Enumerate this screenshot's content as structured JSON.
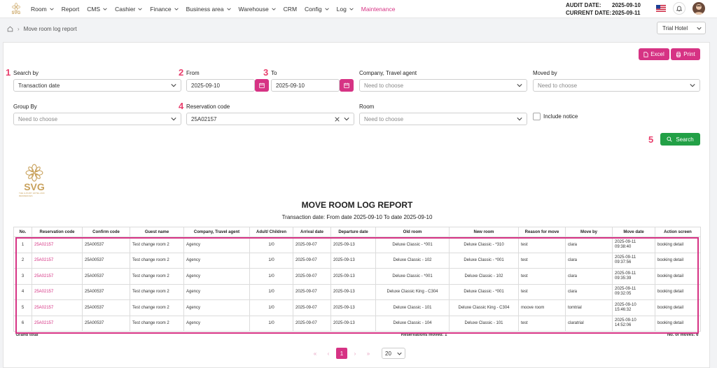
{
  "logo": {
    "text": "SVG"
  },
  "nav": {
    "items": [
      {
        "label": "Room",
        "chevron": true
      },
      {
        "label": "Report",
        "chevron": false
      },
      {
        "label": "CMS",
        "chevron": true
      },
      {
        "label": "Cashier",
        "chevron": true
      },
      {
        "label": "Finance",
        "chevron": true
      },
      {
        "label": "Business area",
        "chevron": true
      },
      {
        "label": "Warehouse",
        "chevron": true
      },
      {
        "label": "CRM",
        "chevron": false
      },
      {
        "label": "Config",
        "chevron": true
      },
      {
        "label": "Log",
        "chevron": true
      },
      {
        "label": "Maintenance",
        "chevron": false
      }
    ],
    "active": "Maintenance",
    "active_color": "#d63384"
  },
  "header": {
    "audit_label": "AUDIT DATE:",
    "audit_value": "2025-09-10",
    "current_label": "CURRENT DATE:",
    "current_value": "2025-09-11",
    "icons": [
      "us-flag-icon",
      "bell-icon",
      "avatar"
    ]
  },
  "breadcrumb": {
    "page": "Move room log report"
  },
  "hotel_select": {
    "value": "Trial Hotel"
  },
  "toolbar": {
    "excel_label": "Excel",
    "print_label": "Print"
  },
  "filters": {
    "search_by": {
      "marker": "1",
      "label": "Search by",
      "value": "Transaction date"
    },
    "from": {
      "marker": "2",
      "label": "From",
      "value": "2025-09-10"
    },
    "to": {
      "marker": "3",
      "label": "To",
      "value": "2025-09-10"
    },
    "company": {
      "label": "Company, Travel agent",
      "placeholder": "Need to choose"
    },
    "moved_by": {
      "label": "Moved by",
      "placeholder": "Need to choose"
    },
    "group_by": {
      "label": "Group By",
      "placeholder": "Need to choose"
    },
    "reservation_code": {
      "marker": "4",
      "label": "Reservation code",
      "value": "25A02157"
    },
    "room": {
      "label": "Room",
      "placeholder": "Need to choose"
    },
    "include_notice": {
      "label": "Include notice",
      "checked": false
    },
    "search": {
      "marker": "5",
      "label": "Search"
    }
  },
  "report": {
    "logo_text": "SVG",
    "logo_tagline": "THE LUXURY HOTEL AND RESIDENCES",
    "title": "MOVE ROOM LOG REPORT",
    "subtitle": "Transaction date:   From date 2025-09-10   To date 2025-09-10",
    "columns": [
      "No.",
      "Reservation code",
      "Confirm code",
      "Guest name",
      "Company, Travel agent",
      "Adult/ Children",
      "Arrival date",
      "Departure date",
      "Old room",
      "New room",
      "Reason for move",
      "Move by",
      "Move date",
      "Action screen"
    ],
    "rows": [
      {
        "no": "1",
        "reservation_code": "25A02157",
        "confirm_code": "25A00537",
        "guest": "Test change room 2",
        "company": "Agency",
        "adult_children": "1/0",
        "arrival": "2025-09-07",
        "departure": "2025-09-13",
        "old_room": "Deluxe Classic - *001",
        "new_room": "Deluxe Classic - *310",
        "reason": "test",
        "move_by": "clara",
        "move_date_1": "2025-09-11",
        "move_date_2": "09:38:40",
        "action": "booking detail"
      },
      {
        "no": "2",
        "reservation_code": "25A02157",
        "confirm_code": "25A00537",
        "guest": "Test change room 2",
        "company": "Agency",
        "adult_children": "1/0",
        "arrival": "2025-09-07",
        "departure": "2025-09-13",
        "old_room": "Deluxe Classic - 102",
        "new_room": "Deluxe Classic - *001",
        "reason": "test",
        "move_by": "clara",
        "move_date_1": "2025-09-11",
        "move_date_2": "09:37:56",
        "action": "booking detail"
      },
      {
        "no": "3",
        "reservation_code": "25A02157",
        "confirm_code": "25A00537",
        "guest": "Test change room 2",
        "company": "Agency",
        "adult_children": "1/0",
        "arrival": "2025-09-07",
        "departure": "2025-09-13",
        "old_room": "Deluxe Classic - *001",
        "new_room": "Deluxe Classic - 102",
        "reason": "test",
        "move_by": "clara",
        "move_date_1": "2025-09-11",
        "move_date_2": "09:35:39",
        "action": "booking detail"
      },
      {
        "no": "4",
        "reservation_code": "25A02157",
        "confirm_code": "25A00537",
        "guest": "Test change room 2",
        "company": "Agency",
        "adult_children": "1/0",
        "arrival": "2025-09-07",
        "departure": "2025-09-13",
        "old_room": "Deluxe Classic King - C304",
        "new_room": "Deluxe Classic - *001",
        "reason": "test",
        "move_by": "clara",
        "move_date_1": "2025-09-11",
        "move_date_2": "09:32:05",
        "action": "booking detail"
      },
      {
        "no": "5",
        "reservation_code": "25A02157",
        "confirm_code": "25A00537",
        "guest": "Test change room 2",
        "company": "Agency",
        "adult_children": "1/0",
        "arrival": "2025-09-07",
        "departure": "2025-09-13",
        "old_room": "Deluxe Classic - 101",
        "new_room": "Deluxe Classic King - C304",
        "reason": "moove room",
        "move_by": "tomtrial",
        "move_date_1": "2025-09-10",
        "move_date_2": "15:46:32",
        "action": "booking detail"
      },
      {
        "no": "6",
        "reservation_code": "25A02157",
        "confirm_code": "25A00537",
        "guest": "Test change room 2",
        "company": "Agency",
        "adult_children": "1/0",
        "arrival": "2025-09-07",
        "departure": "2025-09-13",
        "old_room": "Deluxe Classic - 104",
        "new_room": "Deluxe Classic - 101",
        "reason": "test",
        "move_by": "claratrial",
        "move_date_1": "2025-09-10",
        "move_date_2": "14:52:06",
        "action": "booking detail"
      }
    ],
    "grand_total_label": "Grand total",
    "reservations_moved": "Reservations moved: 1",
    "no_of_moves": "No. of moves: 6"
  },
  "pagination": {
    "first": "«",
    "prev": "‹",
    "current": "1",
    "next": "›",
    "last": "»",
    "page_size": "20"
  },
  "colors": {
    "accent": "#d63384",
    "search_green": "#22a046",
    "marker": "#e83e6c",
    "logo_gold": "#c9a25d"
  }
}
